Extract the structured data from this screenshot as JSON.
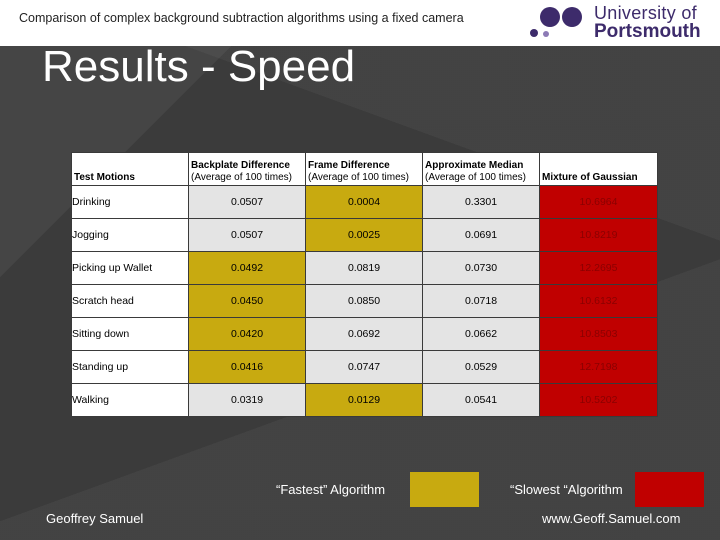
{
  "header": {
    "title": "Comparison of complex background subtraction algorithms using a fixed camera",
    "logo": {
      "line1": "University of",
      "line2": "Portsmouth",
      "color": "#3d2b6b"
    }
  },
  "slide_title": "Results - Speed",
  "table": {
    "columns": [
      {
        "name": "Test Motions",
        "sub": ""
      },
      {
        "name": "Backplate Difference",
        "sub": "(Average of 100 times)"
      },
      {
        "name": "Frame Difference",
        "sub": "(Average of 100 times)"
      },
      {
        "name": "Approximate Median",
        "sub": "(Average of 100 times)"
      },
      {
        "name": "Mixture of Gaussian",
        "sub": ""
      }
    ],
    "rows": [
      {
        "label": "Drinking",
        "values": [
          "0.0507",
          "0.0004",
          "0.3301",
          "10.6964"
        ],
        "fastest": 1,
        "slowest": 3
      },
      {
        "label": "Jogging",
        "values": [
          "0.0507",
          "0.0025",
          "0.0691",
          "10.8219"
        ],
        "fastest": 1,
        "slowest": 3
      },
      {
        "label": "Picking up Wallet",
        "values": [
          "0.0492",
          "0.0819",
          "0.0730",
          "12.2695"
        ],
        "fastest": 0,
        "slowest": 3
      },
      {
        "label": "Scratch head",
        "values": [
          "0.0450",
          "0.0850",
          "0.0718",
          "10.6132"
        ],
        "fastest": 0,
        "slowest": 3
      },
      {
        "label": "Sitting down",
        "values": [
          "0.0420",
          "0.0692",
          "0.0662",
          "10.8503"
        ],
        "fastest": 0,
        "slowest": 3
      },
      {
        "label": "Standing up",
        "values": [
          "0.0416",
          "0.0747",
          "0.0529",
          "12.7198"
        ],
        "fastest": 0,
        "slowest": 3
      },
      {
        "label": "Walking",
        "values": [
          "0.0319",
          "0.0129",
          "0.0541",
          "10.5202"
        ],
        "fastest": 1,
        "slowest": 3
      }
    ]
  },
  "legend": {
    "fastest_label": "“Fastest” Algorithm",
    "slowest_label": "“Slowest “Algorithm",
    "fastest_color": "#c8aa10",
    "slowest_color": "#c00000"
  },
  "footer": {
    "author": "Geoffrey Samuel",
    "website": "www.Geoff.Samuel.com"
  }
}
